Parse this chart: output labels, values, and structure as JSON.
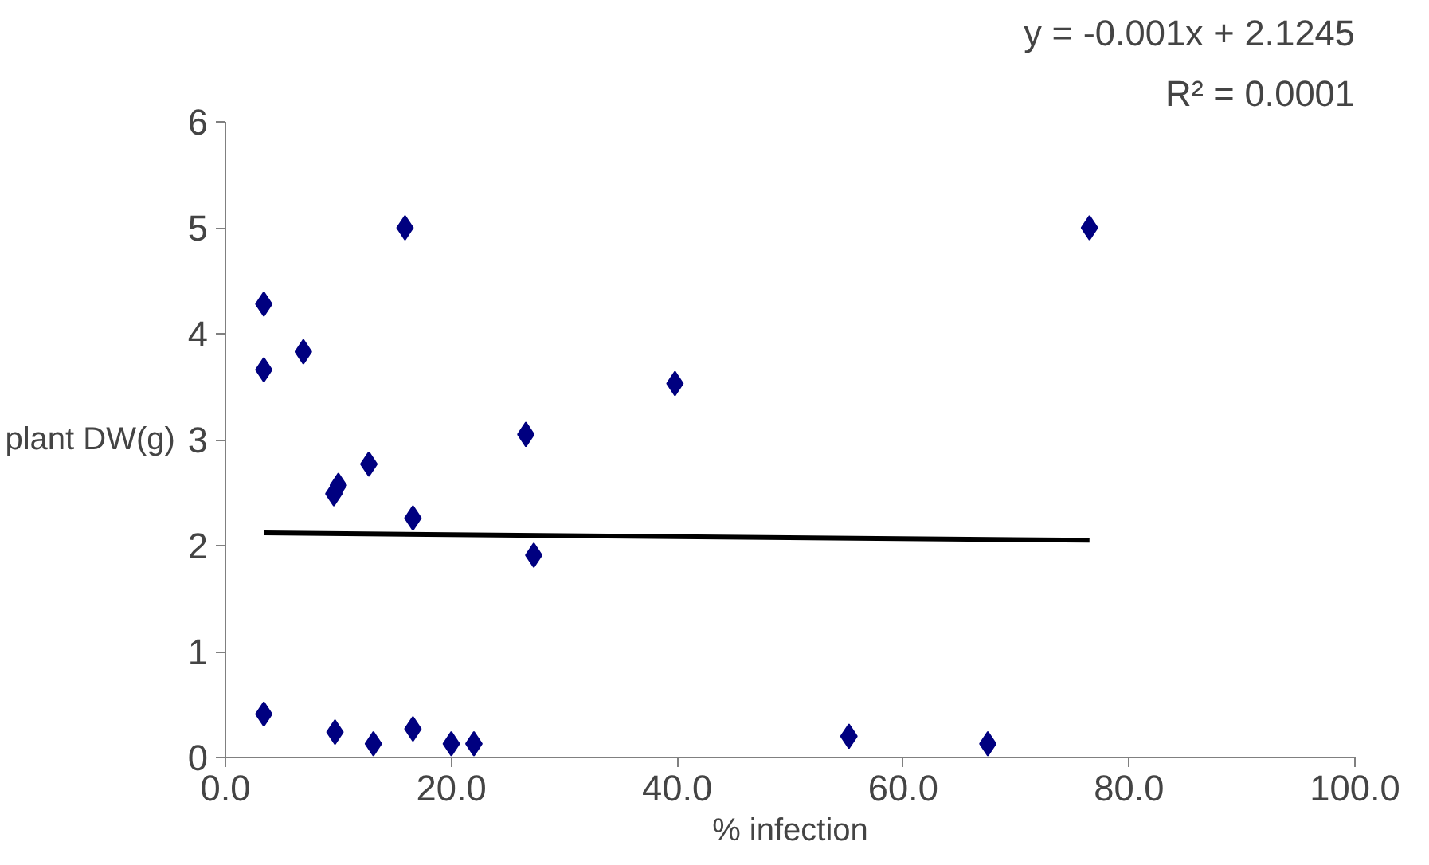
{
  "chart_data": {
    "type": "scatter",
    "xlabel": "% infection",
    "ylabel": "plant DW(g)",
    "annotations": [
      "y = -0.001x + 2.1245",
      "R² = 0.0001"
    ],
    "xlim": [
      0,
      100
    ],
    "ylim": [
      0,
      6
    ],
    "xticks": [
      {
        "value": 0,
        "label": "0.0"
      },
      {
        "value": 20,
        "label": "20.0"
      },
      {
        "value": 40,
        "label": "40.0"
      },
      {
        "value": 60,
        "label": "60.0"
      },
      {
        "value": 80,
        "label": "80.0"
      },
      {
        "value": 100,
        "label": "100.0"
      }
    ],
    "yticks": [
      0,
      1,
      2,
      3,
      4,
      5,
      6
    ],
    "grid": false,
    "series": [
      {
        "marker": "diamond",
        "color": "#000080",
        "x": [
          3.4,
          3.4,
          6.9,
          15.9,
          12.7,
          9.6,
          10.0,
          16.6,
          26.6,
          27.3,
          3.4,
          9.7,
          13.1,
          16.6,
          20.0,
          22.0,
          39.8,
          76.5,
          55.2,
          67.5
        ],
        "values": [
          4.28,
          3.66,
          3.83,
          5.0,
          2.77,
          2.49,
          2.57,
          2.26,
          3.05,
          1.91,
          0.41,
          0.24,
          0.13,
          0.27,
          0.13,
          0.13,
          3.53,
          5.0,
          0.2,
          0.13
        ]
      },
      {
        "type": "line",
        "marker": "none",
        "color": "#000000",
        "x": [
          3.4,
          76.5
        ],
        "values": [
          2.12,
          2.05
        ]
      }
    ]
  }
}
